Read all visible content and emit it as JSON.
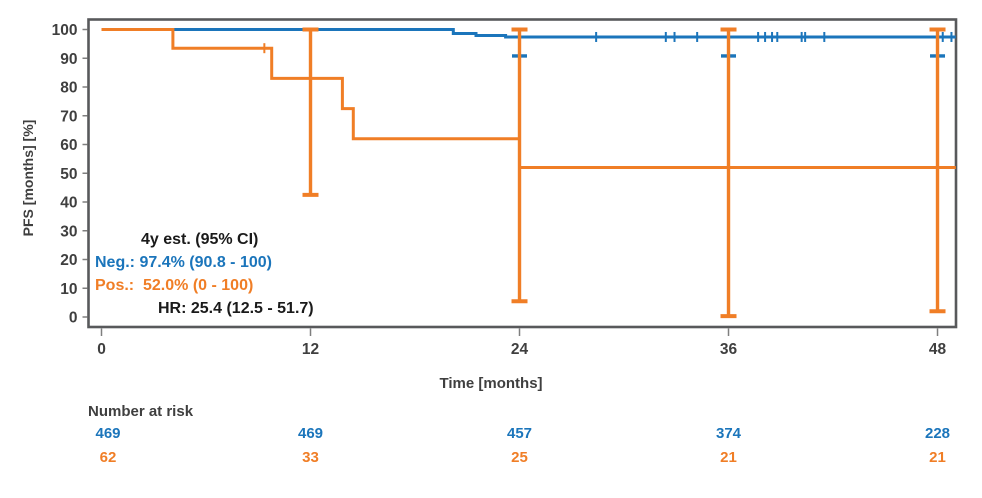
{
  "figure": {
    "background": "#ffffff",
    "frame_color": "#58595b",
    "tick_color": "#7f7f7f",
    "text_color": "#3f3f3f"
  },
  "annotation": {
    "header": "4y est. (95% CI)",
    "neg_line": "Neg.: 97.4% (90.8 - 100)",
    "pos_line": "Pos.:  52.0% (0 - 100)",
    "hr_line": "HR: 25.4 (12.5 - 51.7)",
    "neg_color": "#1b75bb",
    "pos_color": "#f07e26"
  },
  "risk_table": {
    "title": "Number at risk",
    "timepoints": [
      0,
      12,
      24,
      36,
      48
    ],
    "rows": [
      {
        "name": "Neg.",
        "color": "#1b75bb",
        "values": [
          "469",
          "469",
          "457",
          "374",
          "228"
        ]
      },
      {
        "name": "Pos.",
        "color": "#f07e26",
        "values": [
          "62",
          "33",
          "25",
          "21",
          "21"
        ]
      }
    ]
  },
  "chart_data": {
    "type": "line",
    "subtype": "kaplan-meier-step",
    "title": "",
    "xlabel": "Time [months]",
    "ylabel": "PFS [months] [%]",
    "xlim": [
      0,
      49.1
    ],
    "ylim": [
      0,
      100
    ],
    "xticks": [
      0,
      12,
      24,
      36,
      48
    ],
    "yticks": [
      0,
      10,
      20,
      30,
      40,
      50,
      60,
      70,
      80,
      90,
      100
    ],
    "grid": false,
    "legend_position": "none",
    "series": [
      {
        "name": "Neg.",
        "color": "#1b75bb",
        "estimate_4y": "97.4% (90.8 - 100)",
        "points": [
          [
            0,
            100
          ],
          [
            20.2,
            100
          ],
          [
            20.2,
            98.6
          ],
          [
            21.5,
            98.6
          ],
          [
            21.5,
            97.9
          ],
          [
            23.2,
            97.9
          ],
          [
            23.2,
            97.4
          ],
          [
            49.05,
            97.4
          ]
        ],
        "censor_marks": [
          [
            28.4,
            97.4
          ],
          [
            32.4,
            97.4
          ],
          [
            32.9,
            97.4
          ],
          [
            34.2,
            97.4
          ],
          [
            37.7,
            97.4
          ],
          [
            38.1,
            97.4
          ],
          [
            38.5,
            97.4
          ],
          [
            38.8,
            97.4
          ],
          [
            40.2,
            97.4
          ],
          [
            40.4,
            97.4
          ],
          [
            41.5,
            97.4
          ],
          [
            48.3,
            97.4
          ],
          [
            48.8,
            97.4
          ]
        ],
        "ci_lower_caps": [
          {
            "x": 24,
            "y": 90.8
          },
          {
            "x": 36,
            "y": 90.8
          },
          {
            "x": 48,
            "y": 90.8
          }
        ]
      },
      {
        "name": "Pos.",
        "color": "#f07e26",
        "estimate_4y": "52.0% (0 - 100)",
        "points": [
          [
            0,
            100
          ],
          [
            4.1,
            100
          ],
          [
            4.1,
            93.5
          ],
          [
            9.77,
            93.5
          ],
          [
            9.77,
            83
          ],
          [
            13.83,
            83
          ],
          [
            13.83,
            72.5
          ],
          [
            14.46,
            72.5
          ],
          [
            14.46,
            62
          ],
          [
            24,
            62
          ],
          [
            24,
            52
          ],
          [
            49.05,
            52
          ]
        ],
        "censor_marks": [
          [
            9.35,
            93.5
          ]
        ],
        "error_bars": [
          {
            "x": 12,
            "high": 100,
            "low": 42.5
          },
          {
            "x": 24,
            "high": 100,
            "low": 5.5
          },
          {
            "x": 36,
            "high": 100,
            "low": 0.3
          },
          {
            "x": 48,
            "high": 100,
            "low": 2.0
          }
        ]
      }
    ],
    "hazard_ratio": "25.4 (12.5 - 51.7)"
  }
}
